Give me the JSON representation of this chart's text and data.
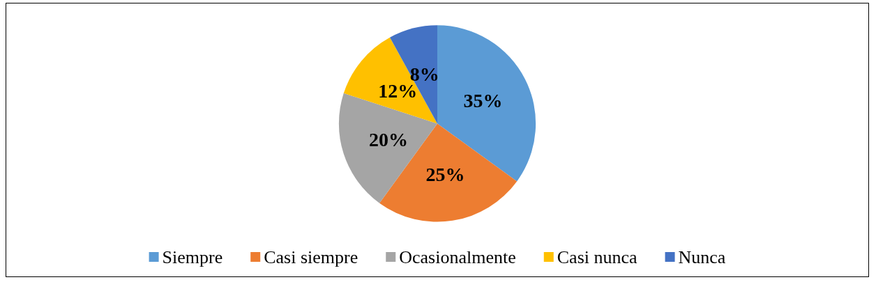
{
  "chart_data": {
    "type": "pie",
    "categories": [
      "Siempre",
      "Casi siempre",
      "Ocasionalmente",
      "Casi nunca",
      "Nunca"
    ],
    "values": [
      35,
      25,
      20,
      12,
      8
    ],
    "colors": [
      "#5b9bd5",
      "#ed7d31",
      "#a5a5a5",
      "#ffc000",
      "#4472c4"
    ],
    "value_labels": [
      "35%",
      "25%",
      "20%",
      "12%",
      "8%"
    ],
    "legend": "bottom"
  }
}
